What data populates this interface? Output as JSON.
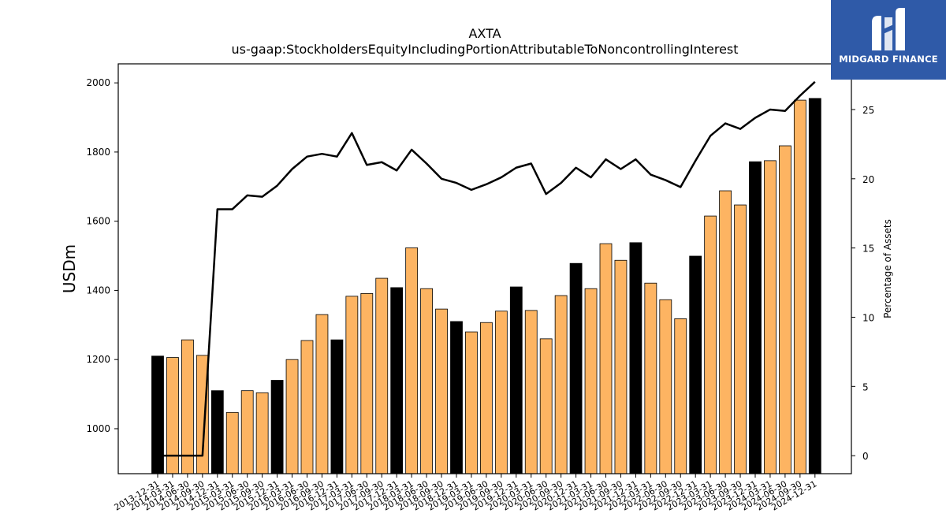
{
  "chart_data": {
    "type": "bar",
    "title": "AXTA",
    "subtitle": "us-gaap:StockholdersEquityIncludingPortionAttributableToNoncontrollingInterest",
    "ylabel": "USDm",
    "y2label": "Percentage of Assets",
    "ylim": [
      870,
      2055
    ],
    "y2lim": [
      -1.3,
      28.3
    ],
    "yticks": [
      1000,
      1200,
      1400,
      1600,
      1800,
      2000
    ],
    "y2ticks": [
      0,
      5,
      10,
      15,
      20,
      25
    ],
    "categories": [
      "2013-12-31",
      "2014-03-31",
      "2014-06-30",
      "2014-09-30",
      "2014-12-31",
      "2015-03-31",
      "2015-06-30",
      "2015-09-30",
      "2015-12-31",
      "2016-03-31",
      "2016-06-30",
      "2016-09-30",
      "2016-12-31",
      "2017-03-31",
      "2017-06-30",
      "2017-09-30",
      "2017-12-31",
      "2018-03-31",
      "2018-06-30",
      "2018-09-30",
      "2018-12-31",
      "2019-03-31",
      "2019-06-30",
      "2019-09-30",
      "2019-12-31",
      "2020-03-31",
      "2020-06-30",
      "2020-09-30",
      "2020-12-31",
      "2021-03-31",
      "2021-06-30",
      "2021-09-30",
      "2021-12-31",
      "2022-03-31",
      "2022-06-30",
      "2022-09-30",
      "2022-12-31",
      "2023-03-31",
      "2023-06-30",
      "2023-09-30",
      "2023-12-31",
      "2024-03-31",
      "2024-06-30",
      "2024-09-30",
      "2024-12-31"
    ],
    "series": [
      {
        "type": "bar",
        "values": [
          1210,
          1206,
          1257,
          1212,
          1110,
          1047,
          1110,
          1104,
          1140,
          1200,
          1255,
          1330,
          1257,
          1383,
          1391,
          1435,
          1408,
          1523,
          1405,
          1346,
          1310,
          1280,
          1307,
          1340,
          1410,
          1342,
          1260,
          1385,
          1478,
          1405,
          1535,
          1487,
          1538,
          1421,
          1373,
          1318,
          1499,
          1615,
          1688,
          1647,
          1772,
          1775,
          1818,
          1950,
          1955
        ],
        "colors": {
          "quarter": "#fdb462",
          "year_end": "#000000"
        }
      },
      {
        "type": "line",
        "axis": "right",
        "color": "#000000",
        "values": [
          0.0,
          0.0,
          0.0,
          0.0,
          17.8,
          17.8,
          18.8,
          18.7,
          19.5,
          20.7,
          21.6,
          21.8,
          21.6,
          23.3,
          21.0,
          21.2,
          20.6,
          22.1,
          21.1,
          20.0,
          19.7,
          19.2,
          19.6,
          20.1,
          20.8,
          21.1,
          18.9,
          19.7,
          20.8,
          20.1,
          21.4,
          20.7,
          21.4,
          20.3,
          19.9,
          19.4,
          21.3,
          23.1,
          24.0,
          23.6,
          24.4,
          25.0,
          24.9,
          26.0,
          27.0
        ]
      }
    ]
  },
  "logo": {
    "text": "MIDGARD FINANCE"
  }
}
